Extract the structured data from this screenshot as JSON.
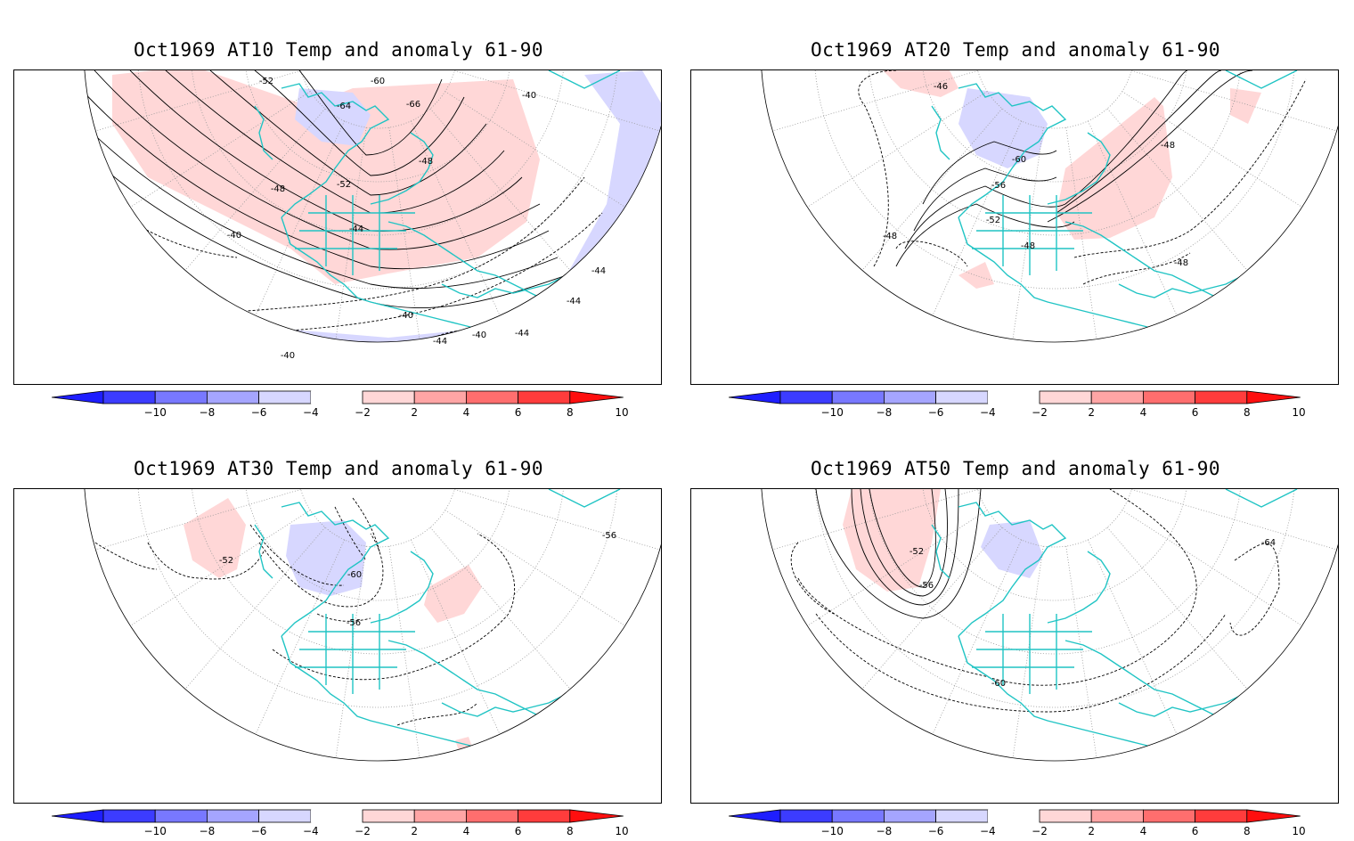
{
  "figure": {
    "panels": [
      {
        "title": "Oct1969 AT10 Temp and anomaly 61-90",
        "contour_labels": [
          "-52",
          "-60",
          "-64",
          "-66",
          "-40",
          "-48",
          "-52",
          "-48",
          "-44",
          "-40",
          "-40",
          "-40",
          "-44",
          "-44",
          "-40",
          "-44",
          "-44"
        ]
      },
      {
        "title": "Oct1969 AT20 Temp and anomaly 61-90",
        "contour_labels": [
          "-46",
          "-48",
          "-60",
          "-56",
          "-52",
          "-48",
          "-48",
          "-48"
        ]
      },
      {
        "title": "Oct1969 AT30 Temp and anomaly 61-90",
        "contour_labels": [
          "-52",
          "-60",
          "-56",
          "-56"
        ]
      },
      {
        "title": "Oct1969 AT50 Temp and anomaly 61-90",
        "contour_labels": [
          "-52",
          "-56",
          "-64",
          "-60"
        ]
      }
    ],
    "colorbar": {
      "tick_labels": [
        "−10",
        "−8",
        "−6",
        "−4",
        "−2",
        "2",
        "4",
        "6",
        "8",
        "10"
      ],
      "colors": [
        "#1e1eff",
        "#3c3cff",
        "#7878ff",
        "#a5a5ff",
        "#d7d7ff",
        "#ffffff",
        "#ffd7d7",
        "#ffa5a5",
        "#ff6e6e",
        "#ff3c3c",
        "#ff0f0f"
      ]
    },
    "colors": {
      "coastline": "#20c4c4",
      "contour": "#000000",
      "grid": "#999999",
      "anomaly_positive": "#ffd7d7",
      "anomaly_negative": "#d7d7ff"
    }
  }
}
